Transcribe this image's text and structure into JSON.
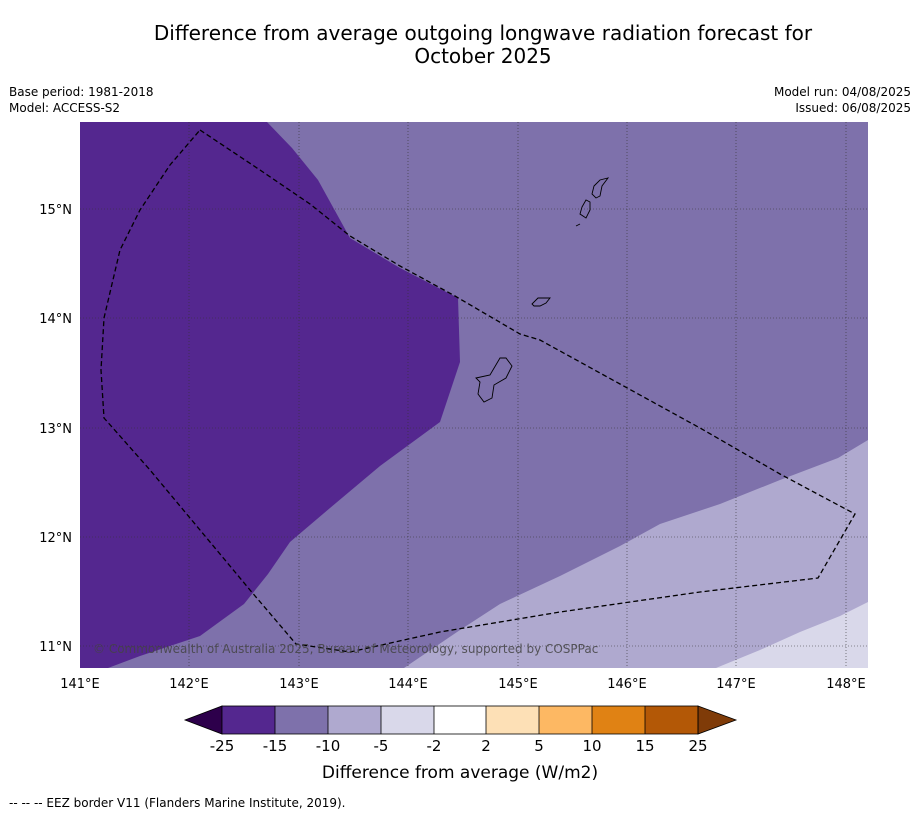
{
  "title": {
    "line1": "Difference from average outgoing longwave radiation forecast for",
    "line2": "October 2025"
  },
  "meta": {
    "base_period": "Base period: 1981-2018",
    "model": "Model: ACCESS-S2",
    "model_run": "Model run: 04/08/2025",
    "issued": "Issued: 06/08/2025"
  },
  "map": {
    "lon_range": [
      141.0,
      148.2
    ],
    "lat_range": [
      10.8,
      15.8
    ],
    "lon_ticks": [
      "141°E",
      "142°E",
      "143°E",
      "144°E",
      "145°E",
      "146°E",
      "147°E",
      "148°E"
    ],
    "lat_ticks": [
      "11°N",
      "12°N",
      "13°N",
      "14°N",
      "15°N"
    ],
    "copyright": "© Commonwealth of Australia 2025, Bureau of Meteorology, supported by COSPPac"
  },
  "colors": {
    "lt_-15": "#54278f",
    "-15_-10": "#7e71ab",
    "-10_-5": "#afa9cf",
    "-5_-2": "#d9d8ea",
    "-2_2": "#ffffff",
    "2_5": "#fde0b6",
    "5_10": "#fdb863",
    "10_15": "#e08214",
    "15_25": "#b35806",
    "under": "#2d004b",
    "over": "#7f3b08"
  },
  "colorbar": {
    "ticks": [
      "-25",
      "-15",
      "-10",
      "-5",
      "-2",
      "2",
      "5",
      "10",
      "15",
      "25"
    ],
    "label": "Difference from average (W/m2)"
  },
  "footer": {
    "legend": "--  --  -- EEZ border V11 (Flanders Marine Institute, 2019)."
  }
}
